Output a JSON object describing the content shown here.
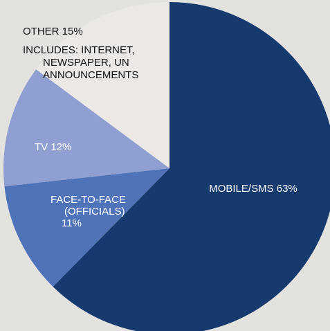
{
  "chart_data": {
    "type": "pie",
    "start_angle_deg": 0,
    "direction": "clockwise",
    "slices": [
      {
        "label": "MOBILE/SMS",
        "value": 63,
        "color": "#163a6d",
        "text_color": "#ffffff",
        "lines": [
          "MOBILE/SMS 63%"
        ]
      },
      {
        "label": "FACE-TO-FACE (OFFICIALS)",
        "value": 11,
        "color": "#4f73b8",
        "text_color": "#ffffff",
        "lines": [
          "FACE-TO-FACE",
          "(OFFICIALS)",
          "11%"
        ]
      },
      {
        "label": "TV",
        "value": 12,
        "color": "#8f9fd2",
        "text_color": "#ffffff",
        "lines": [
          "TV 12%"
        ]
      },
      {
        "label": "OTHER",
        "value": 15,
        "color": "#ebe8e6",
        "text_color": "#111111",
        "lines": [
          "OTHER 15%"
        ]
      }
    ],
    "annotation": [
      "INCLUDES: INTERNET,",
      "NEWSPAPER, UN",
      "ANNOUNCEMENTS"
    ]
  }
}
